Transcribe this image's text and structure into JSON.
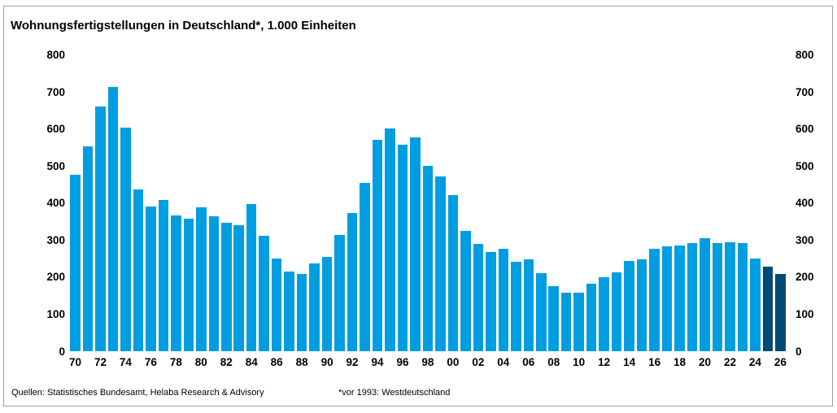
{
  "chart_data": {
    "type": "bar",
    "title": "Wohnungsfertigstellungen in Deutschland*, 1.000 Einheiten",
    "x": [
      1970,
      1971,
      1972,
      1973,
      1974,
      1975,
      1976,
      1977,
      1978,
      1979,
      1980,
      1981,
      1982,
      1983,
      1984,
      1985,
      1986,
      1987,
      1988,
      1989,
      1990,
      1991,
      1992,
      1993,
      1994,
      1995,
      1996,
      1997,
      1998,
      1999,
      2000,
      2001,
      2002,
      2003,
      2004,
      2005,
      2006,
      2007,
      2008,
      2009,
      2010,
      2011,
      2012,
      2013,
      2014,
      2015,
      2016,
      2017,
      2018,
      2019,
      2020,
      2021,
      2022,
      2023,
      2024,
      2025,
      2026
    ],
    "values": [
      478,
      555,
      661,
      714,
      604,
      437,
      392,
      409,
      368,
      358,
      389,
      365,
      347,
      341,
      398,
      312,
      252,
      217,
      209,
      239,
      256,
      315,
      375,
      455,
      572,
      603,
      559,
      578,
      501,
      472,
      423,
      326,
      290,
      268,
      278,
      242,
      249,
      211,
      176,
      159,
      160,
      183,
      200,
      215,
      245,
      248,
      278,
      285,
      287,
      293,
      306,
      293,
      295,
      294,
      252,
      230,
      210
    ],
    "forecast_years": [
      2025,
      2026
    ],
    "ylim": [
      0,
      800
    ],
    "yticks": [
      0,
      100,
      200,
      300,
      400,
      500,
      600,
      700,
      800
    ],
    "xtick_labels": [
      "70",
      "72",
      "74",
      "76",
      "78",
      "80",
      "82",
      "84",
      "86",
      "88",
      "90",
      "92",
      "94",
      "96",
      "98",
      "00",
      "02",
      "04",
      "06",
      "08",
      "10",
      "12",
      "14",
      "16",
      "18",
      "20",
      "22",
      "24",
      "26"
    ],
    "grid": false,
    "legend_position": "none",
    "y_axis_sides": "both",
    "bar_color": "#009EE0",
    "forecast_color": "#004A73"
  },
  "footer": {
    "sources": "Quellen: Statistisches Bundesamt, Helaba Research & Advisory",
    "footnote": "*vor 1993: Westdeutschland"
  }
}
